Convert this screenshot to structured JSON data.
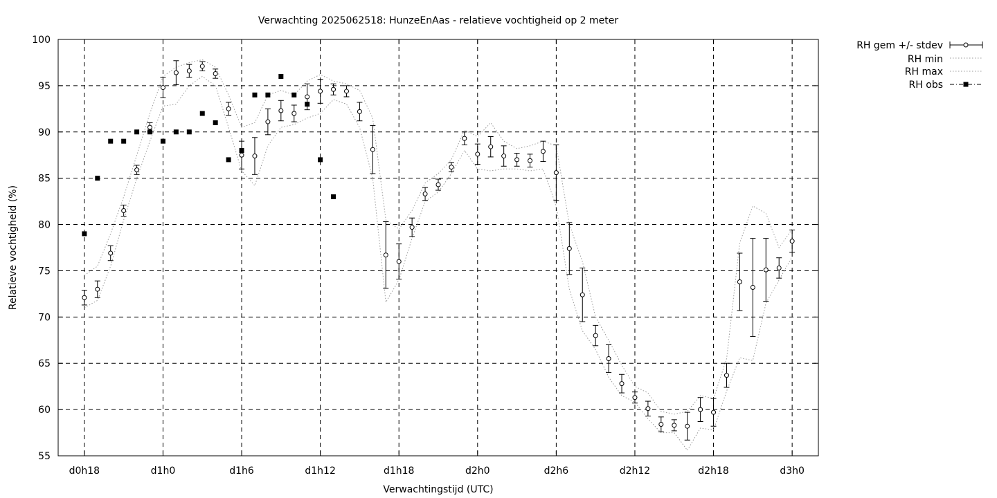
{
  "chart_data": {
    "type": "scatter",
    "title": "Verwachting 2025062518: HunzeEnAas - relatieve vochtigheid op 2 meter",
    "xlabel": "Verwachtingstijd (UTC)",
    "ylabel": "Relatieve vochtigheid (%)",
    "xlim": [
      -2,
      56
    ],
    "ylim": [
      55,
      100
    ],
    "yticks": [
      55,
      60,
      65,
      70,
      75,
      80,
      85,
      90,
      95,
      100
    ],
    "xticks": [
      {
        "x": 0,
        "label": "d0h18"
      },
      {
        "x": 6,
        "label": "d1h0"
      },
      {
        "x": 12,
        "label": "d1h6"
      },
      {
        "x": 18,
        "label": "d1h12"
      },
      {
        "x": 24,
        "label": "d1h18"
      },
      {
        "x": 30,
        "label": "d2h0"
      },
      {
        "x": 36,
        "label": "d2h6"
      },
      {
        "x": 42,
        "label": "d2h12"
      },
      {
        "x": 48,
        "label": "d2h18"
      },
      {
        "x": 54,
        "label": "d3h0"
      }
    ],
    "grid": true,
    "legend_position": "outside-top-right",
    "series": [
      {
        "name": "RH gem +/- stdev",
        "style": "errorbars",
        "x": [
          0,
          1,
          2,
          3,
          4,
          5,
          6,
          7,
          8,
          9,
          10,
          11,
          12,
          13,
          14,
          15,
          16,
          17,
          18,
          19,
          20,
          21,
          22,
          23,
          24,
          25,
          26,
          27,
          28,
          29,
          30,
          31,
          32,
          33,
          34,
          35,
          36,
          37,
          38,
          39,
          40,
          41,
          42,
          43,
          44,
          45,
          46,
          47,
          48,
          49,
          50,
          51,
          52,
          53,
          54
        ],
        "mean": [
          72.1,
          73.0,
          76.9,
          81.5,
          85.9,
          90.5,
          94.8,
          96.4,
          96.6,
          97.1,
          96.3,
          92.5,
          87.5,
          87.4,
          91.1,
          92.3,
          92.0,
          93.8,
          94.4,
          94.6,
          94.4,
          92.2,
          88.1,
          76.7,
          76.0,
          79.7,
          83.3,
          84.3,
          86.2,
          89.3,
          87.6,
          88.4,
          87.4,
          87.0,
          86.9,
          87.9,
          85.6,
          77.4,
          72.4,
          68.0,
          65.5,
          62.8,
          61.3,
          60.1,
          58.4,
          58.3,
          58.2,
          60.0,
          59.7,
          63.7,
          73.8,
          73.2,
          75.1,
          75.3,
          78.2
        ],
        "stdev": [
          0.8,
          0.9,
          0.8,
          0.6,
          0.5,
          0.5,
          1.1,
          1.3,
          0.7,
          0.5,
          0.5,
          0.7,
          1.5,
          2.0,
          1.4,
          1.1,
          0.9,
          1.4,
          1.3,
          0.6,
          0.6,
          1.0,
          2.6,
          3.6,
          1.9,
          1.0,
          0.7,
          0.6,
          0.5,
          0.7,
          1.1,
          1.1,
          1.1,
          0.7,
          0.7,
          1.1,
          3.0,
          2.8,
          2.9,
          1.1,
          1.5,
          1.0,
          0.6,
          0.8,
          0.8,
          0.6,
          1.5,
          1.3,
          1.5,
          1.3,
          3.1,
          5.3,
          3.4,
          1.1,
          1.2
        ]
      },
      {
        "name": "RH min",
        "style": "dotted",
        "x": [
          0,
          1,
          2,
          3,
          4,
          5,
          6,
          7,
          8,
          9,
          10,
          11,
          12,
          13,
          14,
          15,
          16,
          17,
          18,
          19,
          20,
          21,
          22,
          23,
          24,
          25,
          26,
          27,
          28,
          29,
          30,
          31,
          32,
          33,
          34,
          35,
          36,
          37,
          38,
          39,
          40,
          41,
          42,
          43,
          44,
          45,
          46,
          47,
          48,
          49,
          50,
          51,
          52,
          53,
          54
        ],
        "values": [
          71.0,
          71.8,
          75.5,
          80.5,
          85.0,
          89.0,
          92.8,
          93.0,
          95.0,
          96.0,
          95.0,
          90.5,
          85.8,
          84.2,
          88.5,
          90.5,
          90.8,
          91.5,
          92.0,
          93.5,
          93.0,
          90.5,
          85.0,
          71.6,
          74.0,
          78.5,
          82.5,
          83.5,
          85.5,
          88.0,
          86.0,
          85.8,
          86.0,
          86.0,
          85.8,
          86.0,
          82.0,
          73.0,
          68.5,
          66.5,
          63.5,
          61.5,
          60.8,
          59.0,
          57.5,
          57.5,
          55.6,
          58.0,
          57.8,
          62.0,
          65.6,
          65.3,
          71.5,
          74.0,
          76.5
        ]
      },
      {
        "name": "RH max",
        "style": "dotted",
        "x": [
          0,
          1,
          2,
          3,
          4,
          5,
          6,
          7,
          8,
          9,
          10,
          11,
          12,
          13,
          14,
          15,
          16,
          17,
          18,
          19,
          20,
          21,
          22,
          23,
          24,
          25,
          26,
          27,
          28,
          29,
          30,
          31,
          32,
          33,
          34,
          35,
          36,
          37,
          38,
          39,
          40,
          41,
          42,
          43,
          44,
          45,
          46,
          47,
          48,
          49,
          50,
          51,
          52,
          53,
          54
        ],
        "values": [
          74.5,
          75.5,
          79.0,
          83.0,
          87.5,
          92.0,
          96.0,
          97.0,
          97.5,
          97.8,
          97.0,
          94.0,
          90.5,
          91.0,
          94.0,
          94.5,
          94.0,
          95.5,
          96.2,
          95.5,
          95.2,
          94.5,
          91.5,
          80.5,
          79.5,
          81.5,
          84.5,
          85.5,
          87.0,
          90.2,
          89.5,
          91.0,
          89.0,
          88.2,
          88.5,
          89.0,
          88.5,
          80.0,
          76.0,
          70.0,
          67.5,
          64.8,
          62.5,
          61.8,
          59.8,
          59.5,
          59.8,
          61.5,
          61.2,
          65.5,
          78.0,
          82.0,
          81.2,
          77.5,
          79.5
        ]
      },
      {
        "name": "RH obs",
        "style": "points",
        "x": [
          0,
          1,
          2,
          3,
          4,
          5,
          6,
          7,
          8,
          9,
          10,
          11,
          12,
          13,
          14,
          15,
          16,
          17,
          18,
          19
        ],
        "values": [
          79,
          85,
          89,
          89,
          90,
          90,
          89,
          90,
          90,
          92,
          91,
          87,
          88,
          94,
          94,
          96,
          94,
          93,
          87,
          83
        ]
      }
    ]
  }
}
